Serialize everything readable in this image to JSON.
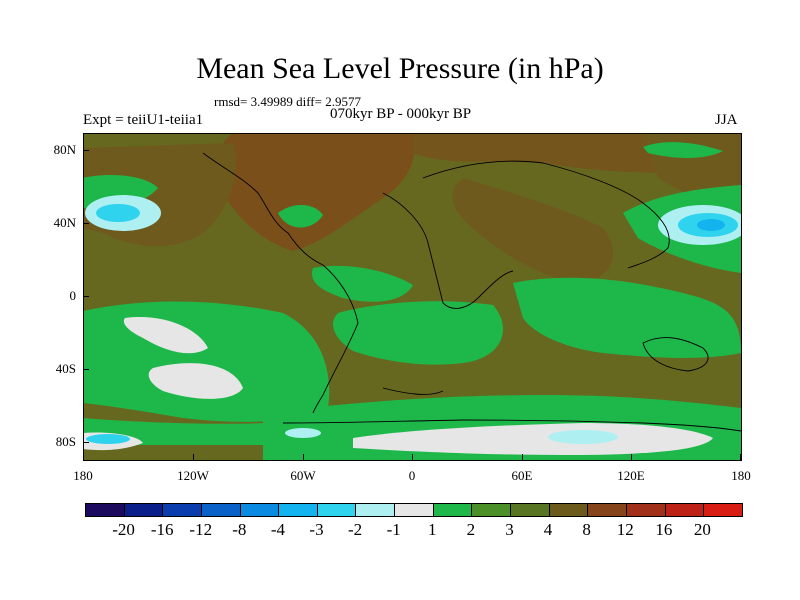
{
  "header": {
    "title": "Mean Sea Level Pressure (in hPa)",
    "stats": "rmsd= 3.49989 diff= 2.9577",
    "experiment": "Expt = teiiU1-teiia1",
    "period": "070kyr BP - 000kyr BP",
    "season": "JJA"
  },
  "axes": {
    "y_ticks": [
      "80N",
      "40N",
      "0",
      "40S",
      "80S"
    ],
    "x_ticks": [
      "180",
      "120W",
      "60W",
      "0",
      "60E",
      "120E",
      "180"
    ]
  },
  "colorbar": {
    "colors": [
      "#1b0a5e",
      "#0b1f8a",
      "#0c3dae",
      "#0a62c9",
      "#0a8ae0",
      "#12b3ee",
      "#2fd3ee",
      "#aef0f2",
      "#e6e6e6",
      "#1eb84a",
      "#4a8f28",
      "#587523",
      "#6b5a1c",
      "#85441a",
      "#a0301a",
      "#bd2216",
      "#d81e14"
    ],
    "labels": [
      "-20",
      "-16",
      "-12",
      "-8",
      "-4",
      "-3",
      "-2",
      "-1",
      "1",
      "2",
      "3",
      "4",
      "8",
      "12",
      "16",
      "20"
    ]
  },
  "map": {
    "background_color": "#66681f"
  }
}
